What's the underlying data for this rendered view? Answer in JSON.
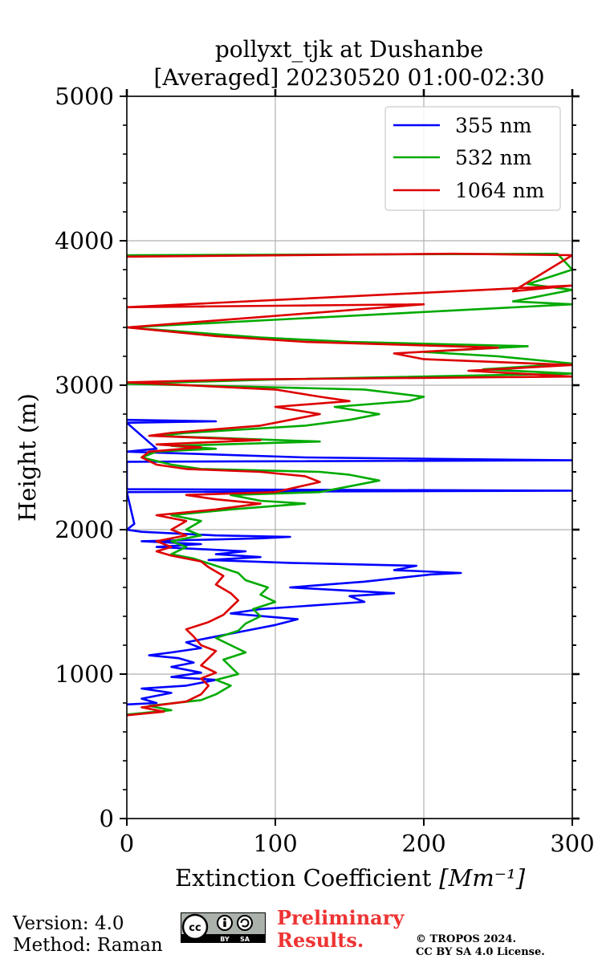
{
  "chart_data": {
    "type": "line",
    "title": "pollyxt_tjk at Dushanbe",
    "subtitle": "[Averaged] 20230520 01:00-02:30",
    "xlabel": "Extinction Coefficient",
    "xlabel_unit": "[Mm⁻¹]",
    "ylabel": "Height (m)",
    "xlim": [
      0,
      300
    ],
    "ylim": [
      0,
      5000
    ],
    "xticks": [
      0,
      100,
      200,
      300
    ],
    "xtick_labels": [
      "0",
      "100",
      "200",
      "300"
    ],
    "yticks": [
      0,
      1000,
      2000,
      3000,
      4000,
      5000
    ],
    "ytick_labels": [
      "0",
      "1000",
      "2000",
      "3000",
      "4000",
      "5000"
    ],
    "grid": true,
    "legend_position": "top-right",
    "series": [
      {
        "name": "355 nm",
        "color": "#0000ff",
        "points": [
          [
            0,
            790
          ],
          [
            20,
            800
          ],
          [
            10,
            830
          ],
          [
            30,
            870
          ],
          [
            10,
            900
          ],
          [
            40,
            920
          ],
          [
            60,
            960
          ],
          [
            30,
            980
          ],
          [
            50,
            1010
          ],
          [
            30,
            1050
          ],
          [
            45,
            1080
          ],
          [
            35,
            1110
          ],
          [
            15,
            1130
          ],
          [
            30,
            1150
          ],
          [
            50,
            1180
          ],
          [
            40,
            1220
          ],
          [
            60,
            1260
          ],
          [
            80,
            1300
          ],
          [
            100,
            1340
          ],
          [
            115,
            1380
          ],
          [
            70,
            1420
          ],
          [
            90,
            1450
          ],
          [
            160,
            1500
          ],
          [
            150,
            1540
          ],
          [
            180,
            1560
          ],
          [
            110,
            1600
          ],
          [
            160,
            1640
          ],
          [
            205,
            1690
          ],
          [
            225,
            1700
          ],
          [
            180,
            1720
          ],
          [
            195,
            1750
          ],
          [
            110,
            1770
          ],
          [
            55,
            1790
          ],
          [
            90,
            1810
          ],
          [
            60,
            1830
          ],
          [
            80,
            1850
          ],
          [
            20,
            1880
          ],
          [
            50,
            1900
          ],
          [
            10,
            1920
          ],
          [
            90,
            1940
          ],
          [
            110,
            1950
          ],
          [
            60,
            1960
          ],
          [
            10,
            1985
          ],
          [
            0,
            2000
          ],
          [
            5,
            2040
          ],
          [
            0,
            2260
          ],
          [
            300,
            2270
          ],
          [
            0,
            2280
          ],
          [
            0,
            2470
          ],
          [
            300,
            2480
          ],
          [
            120,
            2500
          ],
          [
            0,
            2540
          ],
          [
            20,
            2560
          ],
          [
            0,
            2740
          ],
          [
            60,
            2750
          ],
          [
            0,
            2760
          ]
        ]
      },
      {
        "name": "532 nm",
        "color": "#00aa00",
        "points": [
          [
            0,
            720
          ],
          [
            30,
            750
          ],
          [
            15,
            780
          ],
          [
            50,
            820
          ],
          [
            60,
            860
          ],
          [
            70,
            920
          ],
          [
            60,
            960
          ],
          [
            75,
            1000
          ],
          [
            70,
            1050
          ],
          [
            65,
            1100
          ],
          [
            80,
            1150
          ],
          [
            70,
            1200
          ],
          [
            60,
            1250
          ],
          [
            75,
            1300
          ],
          [
            80,
            1350
          ],
          [
            90,
            1400
          ],
          [
            85,
            1450
          ],
          [
            100,
            1500
          ],
          [
            90,
            1550
          ],
          [
            95,
            1600
          ],
          [
            80,
            1650
          ],
          [
            75,
            1700
          ],
          [
            60,
            1750
          ],
          [
            45,
            1800
          ],
          [
            30,
            1830
          ],
          [
            40,
            1880
          ],
          [
            30,
            1920
          ],
          [
            50,
            1960
          ],
          [
            40,
            2000
          ],
          [
            50,
            2060
          ],
          [
            30,
            2100
          ],
          [
            70,
            2140
          ],
          [
            120,
            2180
          ],
          [
            90,
            2200
          ],
          [
            70,
            2240
          ],
          [
            130,
            2260
          ],
          [
            170,
            2340
          ],
          [
            150,
            2380
          ],
          [
            130,
            2400
          ],
          [
            50,
            2420
          ],
          [
            30,
            2450
          ],
          [
            10,
            2500
          ],
          [
            20,
            2540
          ],
          [
            60,
            2560
          ],
          [
            30,
            2580
          ],
          [
            130,
            2610
          ],
          [
            20,
            2650
          ],
          [
            40,
            2670
          ],
          [
            120,
            2720
          ],
          [
            150,
            2760
          ],
          [
            170,
            2800
          ],
          [
            140,
            2850
          ],
          [
            190,
            2890
          ],
          [
            200,
            2920
          ],
          [
            160,
            2970
          ],
          [
            0,
            3010
          ],
          [
            100,
            3040
          ],
          [
            300,
            3080
          ],
          [
            240,
            3110
          ],
          [
            300,
            3150
          ],
          [
            250,
            3200
          ],
          [
            200,
            3230
          ],
          [
            270,
            3270
          ],
          [
            150,
            3300
          ],
          [
            90,
            3330
          ],
          [
            0,
            3400
          ],
          [
            300,
            3560
          ],
          [
            260,
            3580
          ],
          [
            300,
            3660
          ],
          [
            270,
            3700
          ],
          [
            300,
            3800
          ],
          [
            290,
            3910
          ],
          [
            0,
            3900
          ]
        ]
      },
      {
        "name": "1064 nm",
        "color": "#dd0000",
        "points": [
          [
            0,
            715
          ],
          [
            25,
            740
          ],
          [
            10,
            770
          ],
          [
            40,
            810
          ],
          [
            50,
            860
          ],
          [
            55,
            920
          ],
          [
            50,
            970
          ],
          [
            60,
            1010
          ],
          [
            50,
            1060
          ],
          [
            55,
            1110
          ],
          [
            60,
            1160
          ],
          [
            50,
            1200
          ],
          [
            45,
            1260
          ],
          [
            40,
            1310
          ],
          [
            55,
            1360
          ],
          [
            65,
            1410
          ],
          [
            70,
            1460
          ],
          [
            75,
            1510
          ],
          [
            70,
            1560
          ],
          [
            60,
            1620
          ],
          [
            65,
            1680
          ],
          [
            55,
            1740
          ],
          [
            50,
            1780
          ],
          [
            30,
            1820
          ],
          [
            20,
            1850
          ],
          [
            30,
            1880
          ],
          [
            20,
            1920
          ],
          [
            40,
            1960
          ],
          [
            30,
            2000
          ],
          [
            40,
            2060
          ],
          [
            20,
            2100
          ],
          [
            60,
            2140
          ],
          [
            90,
            2180
          ],
          [
            60,
            2210
          ],
          [
            40,
            2240
          ],
          [
            100,
            2260
          ],
          [
            130,
            2330
          ],
          [
            120,
            2370
          ],
          [
            90,
            2400
          ],
          [
            40,
            2420
          ],
          [
            20,
            2450
          ],
          [
            10,
            2500
          ],
          [
            15,
            2540
          ],
          [
            50,
            2570
          ],
          [
            20,
            2590
          ],
          [
            90,
            2620
          ],
          [
            15,
            2650
          ],
          [
            30,
            2670
          ],
          [
            90,
            2720
          ],
          [
            110,
            2760
          ],
          [
            130,
            2800
          ],
          [
            100,
            2850
          ],
          [
            150,
            2890
          ],
          [
            130,
            2920
          ],
          [
            100,
            2970
          ],
          [
            0,
            3020
          ],
          [
            80,
            3040
          ],
          [
            300,
            3060
          ],
          [
            230,
            3100
          ],
          [
            300,
            3140
          ],
          [
            200,
            3180
          ],
          [
            180,
            3220
          ],
          [
            250,
            3260
          ],
          [
            120,
            3300
          ],
          [
            60,
            3340
          ],
          [
            0,
            3400
          ],
          [
            200,
            3560
          ],
          [
            0,
            3540
          ],
          [
            300,
            3690
          ],
          [
            260,
            3650
          ],
          [
            300,
            3900
          ],
          [
            220,
            3910
          ],
          [
            0,
            3890
          ]
        ]
      }
    ]
  },
  "footer": {
    "version_line": "Version: 4.0",
    "method_line": "Method: Raman",
    "preliminary_line1": "Preliminary",
    "preliminary_line2": "Results.",
    "copyright_line1": "© TROPOS 2024.",
    "copyright_line2": "CC BY SA 4.0 License.",
    "badge_text_cc": "cc",
    "badge_text_by": "BY",
    "badge_text_sa": "SA",
    "preliminary_color": "#ee3333"
  }
}
